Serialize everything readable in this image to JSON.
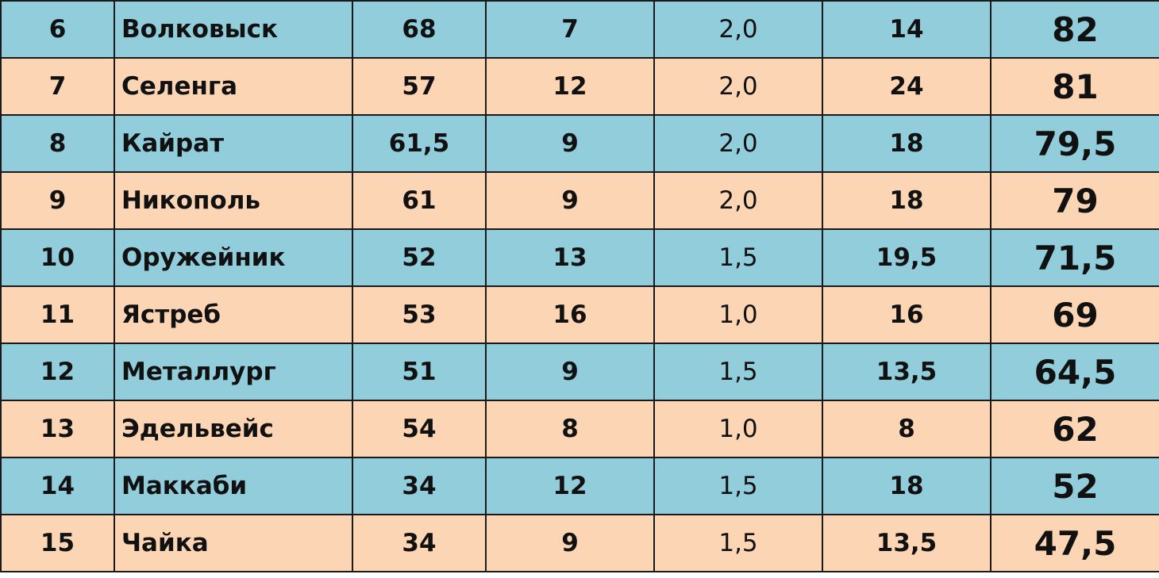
{
  "table": {
    "rows": [
      [
        "6",
        "Волковыск",
        "68",
        "7",
        "2,0",
        "14",
        "82"
      ],
      [
        "7",
        "Селенга",
        "57",
        "12",
        "2,0",
        "24",
        "81"
      ],
      [
        "8",
        "Кайрат",
        "61,5",
        "9",
        "2,0",
        "18",
        "79,5"
      ],
      [
        "9",
        "Никополь",
        "61",
        "9",
        "2,0",
        "18",
        "79"
      ],
      [
        "10",
        "Оружейник",
        "52",
        "13",
        "1,5",
        "19,5",
        "71,5"
      ],
      [
        "11",
        "Ястреб",
        "53",
        "16",
        "1,0",
        "16",
        "69"
      ],
      [
        "12",
        "Металлург",
        "51",
        "9",
        "1,5",
        "13,5",
        "64,5"
      ],
      [
        "13",
        "Эдельвейс",
        "54",
        "8",
        "1,0",
        "8",
        "62"
      ],
      [
        "14",
        "Маккаби",
        "34",
        "12",
        "1,5",
        "18",
        "52"
      ],
      [
        "15",
        "Чайка",
        "34",
        "9",
        "1,5",
        "13,5",
        "47,5"
      ]
    ]
  }
}
